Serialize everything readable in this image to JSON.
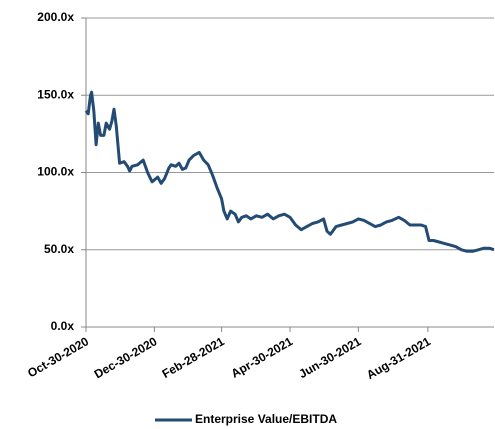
{
  "chart_data": {
    "type": "line",
    "x": [
      "2020-10-30",
      "2020-11-01",
      "2020-11-03",
      "2020-11-04",
      "2020-11-06",
      "2020-11-08",
      "2020-11-10",
      "2020-11-12",
      "2020-11-15",
      "2020-11-17",
      "2020-11-20",
      "2020-11-22",
      "2020-11-24",
      "2020-11-26",
      "2020-11-29",
      "2020-12-03",
      "2020-12-06",
      "2020-12-08",
      "2020-12-10",
      "2020-12-15",
      "2020-12-20",
      "2020-12-24",
      "2020-12-28",
      "2021-01-02",
      "2021-01-05",
      "2021-01-08",
      "2021-01-12",
      "2021-01-14",
      "2021-01-18",
      "2021-01-21",
      "2021-01-24",
      "2021-01-27",
      "2021-01-30",
      "2021-02-03",
      "2021-02-08",
      "2021-02-12",
      "2021-02-16",
      "2021-02-20",
      "2021-02-24",
      "2021-02-28",
      "2021-03-02",
      "2021-03-05",
      "2021-03-08",
      "2021-03-12",
      "2021-03-15",
      "2021-03-18",
      "2021-03-22",
      "2021-03-26",
      "2021-03-31",
      "2021-04-05",
      "2021-04-10",
      "2021-04-15",
      "2021-04-20",
      "2021-04-25",
      "2021-04-30",
      "2021-05-05",
      "2021-05-10",
      "2021-05-15",
      "2021-05-20",
      "2021-05-25",
      "2021-05-30",
      "2021-06-02",
      "2021-06-05",
      "2021-06-10",
      "2021-06-15",
      "2021-06-20",
      "2021-06-25",
      "2021-06-30",
      "2021-07-05",
      "2021-07-10",
      "2021-07-15",
      "2021-07-20",
      "2021-07-25",
      "2021-07-30",
      "2021-08-05",
      "2021-08-10",
      "2021-08-15",
      "2021-08-20",
      "2021-08-25",
      "2021-08-29",
      "2021-09-01",
      "2021-09-05",
      "2021-09-10",
      "2021-09-15",
      "2021-09-20",
      "2021-09-25",
      "2021-09-30",
      "2021-10-05",
      "2021-10-10",
      "2021-10-15",
      "2021-10-20",
      "2021-10-25",
      "2021-10-29"
    ],
    "series": [
      {
        "name": "Enterprise Value/EBITDA",
        "color": "#234b74",
        "values": [
          140,
          138,
          150,
          152,
          140,
          118,
          132,
          124,
          124,
          132,
          128,
          133,
          141,
          130,
          106,
          107,
          104,
          101,
          104,
          105,
          108,
          100,
          94,
          97,
          93,
          96,
          103,
          105,
          104,
          106,
          102,
          103,
          108,
          111,
          113,
          108,
          105,
          98,
          90,
          83,
          75,
          70,
          75,
          73,
          68,
          71,
          72,
          70,
          72,
          71,
          73,
          70,
          72,
          73,
          71,
          66,
          63,
          65,
          67,
          68,
          70,
          62,
          60,
          65,
          66,
          67,
          68,
          70,
          69,
          67,
          65,
          66,
          68,
          69,
          71,
          69,
          66,
          66,
          66,
          65,
          56,
          56,
          55,
          54,
          53,
          52,
          50,
          49,
          49,
          50,
          51,
          51,
          50
        ]
      }
    ],
    "xlim": [
      "2020-10-30",
      "2021-10-29"
    ],
    "xticks": [
      {
        "value": "2020-10-30",
        "label": "Oct-30-2020"
      },
      {
        "value": "2020-12-30",
        "label": "Dec-30-2020"
      },
      {
        "value": "2021-02-28",
        "label": "Feb-28-2021"
      },
      {
        "value": "2021-04-30",
        "label": "Apr-30-2021"
      },
      {
        "value": "2021-06-30",
        "label": "Jun-30-2021"
      },
      {
        "value": "2021-08-31",
        "label": "Aug-31-2021"
      }
    ],
    "ylim": [
      0,
      200
    ],
    "yticks": [
      {
        "value": 0,
        "label": "0.0x"
      },
      {
        "value": 50,
        "label": "50.0x"
      },
      {
        "value": 100,
        "label": "100.0x"
      },
      {
        "value": 150,
        "label": "150.0x"
      },
      {
        "value": 200,
        "label": "200.0x"
      }
    ],
    "grid": true,
    "legend": "bottom"
  }
}
